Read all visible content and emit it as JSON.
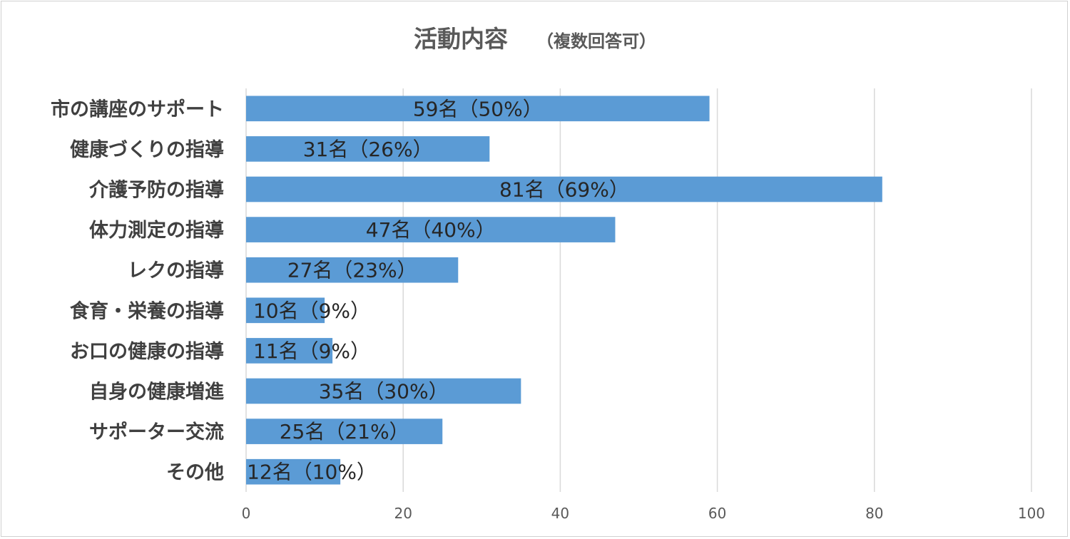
{
  "chart_data": {
    "type": "bar",
    "orientation": "horizontal",
    "title": "活動内容",
    "subtitle": "（複数回答可）",
    "categories": [
      "市の講座のサポート",
      "健康づくりの指導",
      "介護予防の指導",
      "体力測定の指導",
      "レクの指導",
      "食育・栄養の指導",
      "お口の健康の指導",
      "自身の健康増進",
      "サポーター交流",
      "その他"
    ],
    "values": [
      59,
      31,
      81,
      47,
      27,
      10,
      11,
      35,
      25,
      12
    ],
    "data_labels": [
      "59名（50%）",
      "31名（26%）",
      "81名（69%）",
      "47名（40%）",
      "27名（23%）",
      "10名（9%）",
      "11名（9%）",
      "35名（30%）",
      "25名（21%）",
      "12名（10%）"
    ],
    "xlim": [
      0,
      100
    ],
    "xticks": [
      0,
      20,
      40,
      60,
      80,
      100
    ],
    "xtick_labels": [
      "0",
      "20",
      "40",
      "60",
      "80",
      "100"
    ],
    "grid": "vertical",
    "bar_color": "#5b9bd5",
    "grid_color": "#d9d9d9",
    "legend": "none"
  }
}
